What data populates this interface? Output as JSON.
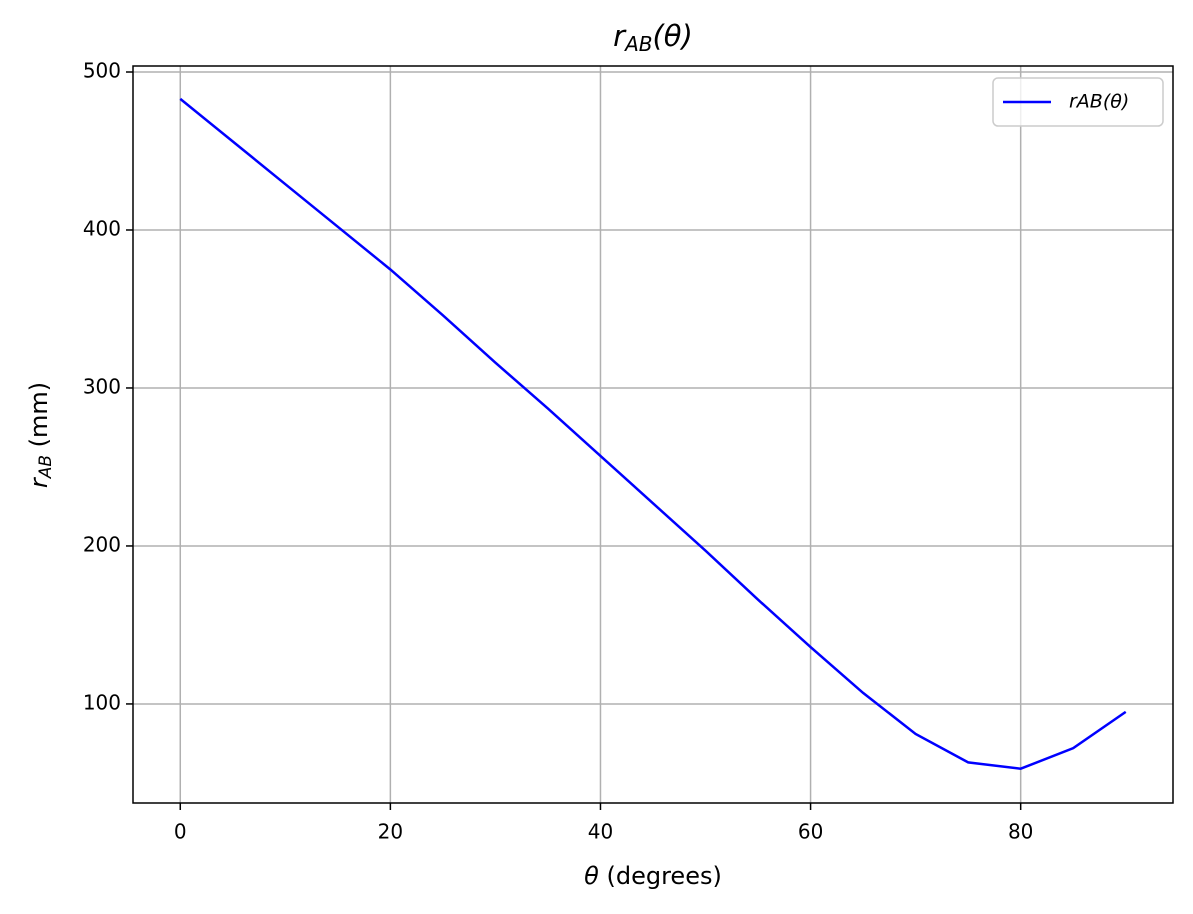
{
  "chart_data": {
    "type": "line",
    "title": [
      "r",
      "AB",
      "(θ)"
    ],
    "x_label": [
      "θ",
      " (degrees)"
    ],
    "y_label": [
      "r",
      "AB",
      " (mm)"
    ],
    "x": [
      0,
      5,
      10,
      15,
      20,
      25,
      30,
      35,
      40,
      45,
      50,
      55,
      60,
      65,
      70,
      75,
      80,
      85,
      90
    ],
    "series": [
      {
        "name": "rAB(θ)",
        "color": "#0000ff",
        "values": [
          483,
          456,
          429,
          402,
          375,
          346,
          316,
          287,
          257,
          227,
          197,
          166,
          136,
          107,
          81,
          63,
          59,
          72,
          95
        ]
      }
    ],
    "xlim": [
      -4.5,
      94.5
    ],
    "xticks": [
      0,
      20,
      40,
      60,
      80
    ],
    "ylim": [
      37.3,
      503.8
    ],
    "yticks": [
      100,
      200,
      300,
      400,
      500
    ],
    "grid": true,
    "legend": "upper right"
  }
}
